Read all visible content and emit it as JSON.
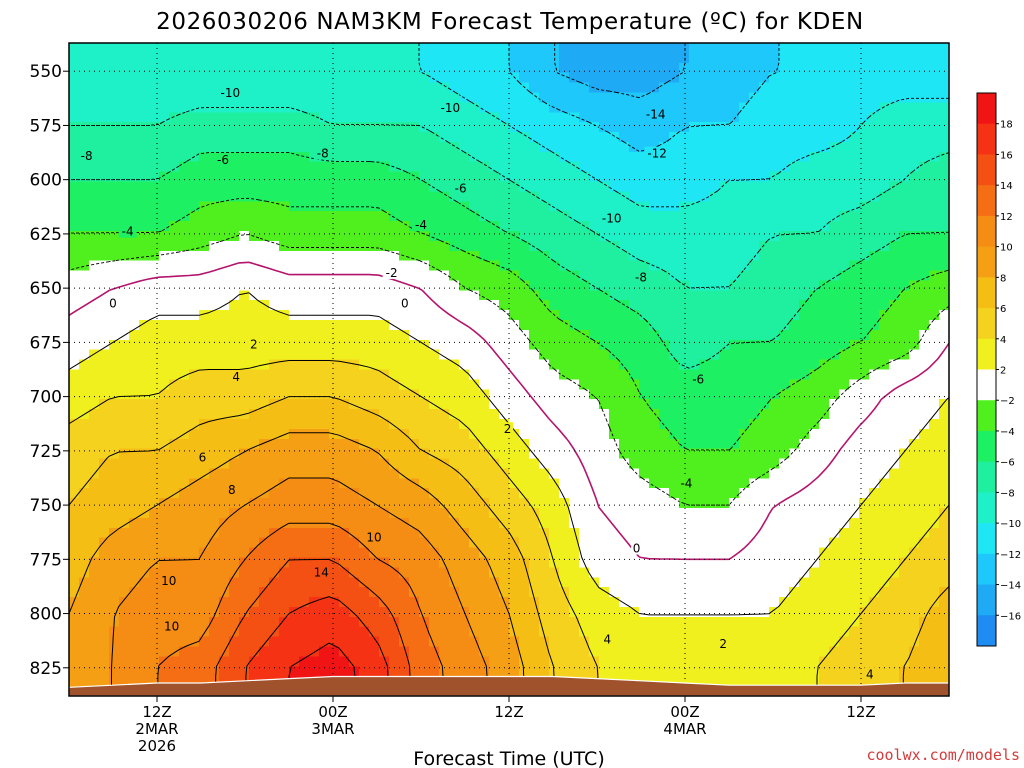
{
  "chart_data": {
    "type": "contour",
    "title": "2026030206 NAM3KM Forecast Temperature (ºC) for KDEN",
    "xlabel": "Forecast Time (UTC)",
    "ylabel": "",
    "credit": "coolwx.com/models",
    "x_range_hours": [
      0,
      60
    ],
    "ylim": [
      537,
      838
    ],
    "y_ticks": [
      550,
      575,
      600,
      625,
      650,
      675,
      700,
      725,
      750,
      775,
      800,
      825
    ],
    "x_ticks": [
      {
        "hour": 6,
        "line1": "12Z",
        "line2": "2MAR",
        "line3": "2026"
      },
      {
        "hour": 18,
        "line1": "00Z",
        "line2": "3MAR",
        "line3": ""
      },
      {
        "hour": 30,
        "line1": "12Z",
        "line2": "",
        "line3": ""
      },
      {
        "hour": 42,
        "line1": "00Z",
        "line2": "4MAR",
        "line3": ""
      },
      {
        "hour": 54,
        "line1": "12Z",
        "line2": "",
        "line3": ""
      }
    ],
    "colorbar": {
      "levels": [
        -18,
        -16,
        -14,
        -12,
        -10,
        -8,
        -6,
        -4,
        -2,
        2,
        4,
        6,
        8,
        10,
        12,
        14,
        16,
        18,
        20
      ],
      "labels": [
        18,
        16,
        14,
        12,
        10,
        8,
        6,
        4,
        2,
        -2,
        -4,
        -6,
        -8,
        -10,
        -12,
        -14,
        -16
      ],
      "colors": [
        "#1e8cf0",
        "#1eaaf5",
        "#1ec8fa",
        "#1ee6f5",
        "#1ef0c8",
        "#1ef0a0",
        "#1ef064",
        "#50f01e",
        "#ffffff",
        "#f0f01e",
        "#f5d21e",
        "#f5be14",
        "#f5a014",
        "#f58c14",
        "#f56e14",
        "#f55014",
        "#f53214",
        "#f01414"
      ]
    },
    "hours": [
      0,
      3,
      6,
      9,
      12,
      15,
      18,
      21,
      24,
      27,
      30,
      33,
      36,
      39,
      42,
      45,
      48,
      51,
      54,
      57,
      60
    ],
    "levels_hpa": [
      550,
      575,
      600,
      625,
      650,
      675,
      700,
      725,
      750,
      775,
      800,
      825
    ],
    "temperature": [
      [
        -10,
        -10,
        -10,
        -10,
        -10,
        -10,
        -10,
        -10,
        -10,
        -11,
        -12,
        -14,
        -15,
        -15,
        -14,
        -13,
        -12,
        -12,
        -11,
        -11,
        -11
      ],
      [
        -8,
        -8,
        -8,
        -7,
        -7,
        -7,
        -8,
        -8,
        -8,
        -9,
        -10,
        -11,
        -12,
        -13,
        -12,
        -12,
        -11,
        -11,
        -10,
        -9,
        -9
      ],
      [
        -6,
        -6,
        -6,
        -5,
        -5,
        -5,
        -5,
        -5,
        -6,
        -7,
        -8,
        -9,
        -10,
        -11,
        -11,
        -10,
        -10,
        -9,
        -9,
        -8,
        -7
      ],
      [
        -4,
        -4,
        -4,
        -3,
        -2,
        -3,
        -3,
        -3,
        -4,
        -5,
        -6,
        -7,
        -8,
        -9,
        -9,
        -9,
        -8,
        -8,
        -7,
        -6,
        -6
      ],
      [
        -1,
        0,
        1,
        1,
        2,
        1,
        1,
        1,
        0,
        -2,
        -3,
        -5,
        -6,
        -7,
        -8,
        -8,
        -7,
        -6,
        -5,
        -4,
        -3
      ],
      [
        1,
        2,
        3,
        3,
        3,
        3,
        3,
        3,
        2,
        1,
        -1,
        -3,
        -4,
        -5,
        -7,
        -6,
        -6,
        -5,
        -4,
        -3,
        0
      ],
      [
        3,
        4,
        4,
        5,
        5,
        6,
        6,
        5,
        4,
        3,
        1,
        -1,
        -2,
        -4,
        -5,
        -5,
        -4,
        -3,
        -1,
        1,
        2
      ],
      [
        5,
        6,
        6,
        7,
        8,
        9,
        9,
        8,
        6,
        5,
        3,
        1,
        -1,
        -3,
        -4,
        -4,
        -3,
        -1,
        1,
        2,
        3
      ],
      [
        6,
        7,
        8,
        9,
        10,
        11,
        11,
        10,
        9,
        7,
        5,
        3,
        0,
        -1,
        -2,
        -2,
        0,
        1,
        2,
        3,
        4
      ],
      [
        7,
        9,
        10,
        10,
        12,
        14,
        14,
        12,
        11,
        9,
        7,
        4,
        1,
        0,
        0,
        0,
        1,
        2,
        3,
        4,
        5
      ],
      [
        8,
        10,
        11,
        11,
        14,
        16,
        17,
        15,
        12,
        10,
        8,
        5,
        3,
        2,
        2,
        2,
        2,
        3,
        4,
        5,
        7
      ],
      [
        9,
        10,
        12,
        13,
        16,
        18,
        19,
        17,
        13,
        11,
        9,
        6,
        4,
        3,
        3,
        3,
        3,
        4,
        5,
        6,
        8
      ]
    ],
    "surface_hpa": [
      834,
      833,
      832,
      832,
      831,
      830,
      829,
      829,
      829,
      829,
      829,
      829,
      830,
      831,
      832,
      833,
      833,
      833,
      833,
      832,
      832
    ],
    "contour_labels": [
      {
        "text": "-10",
        "hour": 11,
        "p": 560
      },
      {
        "text": "-10",
        "hour": 26,
        "p": 567
      },
      {
        "text": "-14",
        "hour": 40,
        "p": 570
      },
      {
        "text": "-8",
        "hour": 1.2,
        "p": 589
      },
      {
        "text": "-6",
        "hour": 10.5,
        "p": 591
      },
      {
        "text": "-8",
        "hour": 17.3,
        "p": 588
      },
      {
        "text": "-12",
        "hour": 40.1,
        "p": 588
      },
      {
        "text": "-6",
        "hour": 26.7,
        "p": 604
      },
      {
        "text": "-4",
        "hour": 4,
        "p": 624
      },
      {
        "text": "-4",
        "hour": 24,
        "p": 621
      },
      {
        "text": "-10",
        "hour": 37,
        "p": 618
      },
      {
        "text": "-2",
        "hour": 22,
        "p": 643
      },
      {
        "text": "-8",
        "hour": 39,
        "p": 645
      },
      {
        "text": "0",
        "hour": 3,
        "p": 657
      },
      {
        "text": "0",
        "hour": 22.9,
        "p": 657
      },
      {
        "text": "2",
        "hour": 12.6,
        "p": 676
      },
      {
        "text": "-6",
        "hour": 42.9,
        "p": 692
      },
      {
        "text": "4",
        "hour": 11.4,
        "p": 691
      },
      {
        "text": "2",
        "hour": 29.9,
        "p": 715
      },
      {
        "text": "6",
        "hour": 9.1,
        "p": 728
      },
      {
        "text": "-4",
        "hour": 42.1,
        "p": 740
      },
      {
        "text": "8",
        "hour": 11.1,
        "p": 743
      },
      {
        "text": "10",
        "hour": 20.8,
        "p": 765
      },
      {
        "text": "0",
        "hour": 38.7,
        "p": 770
      },
      {
        "text": "14",
        "hour": 17.2,
        "p": 781
      },
      {
        "text": "10",
        "hour": 6.8,
        "p": 785
      },
      {
        "text": "10",
        "hour": 7,
        "p": 806
      },
      {
        "text": "4",
        "hour": 36.7,
        "p": 812
      },
      {
        "text": "2",
        "hour": 44.6,
        "p": 814
      },
      {
        "text": "4",
        "hour": 54.6,
        "p": 828
      }
    ]
  }
}
